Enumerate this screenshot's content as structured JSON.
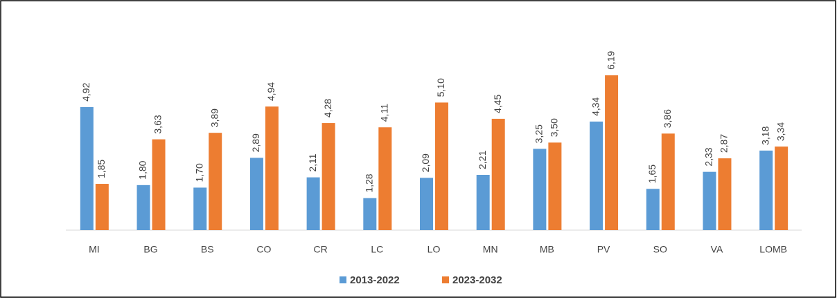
{
  "chart_data": {
    "type": "bar",
    "categories": [
      "MI",
      "BG",
      "BS",
      "CO",
      "CR",
      "LC",
      "LO",
      "MN",
      "MB",
      "PV",
      "SO",
      "VA",
      "LOMB"
    ],
    "series": [
      {
        "name": "2013-2022",
        "color": "#5b9bd5",
        "values": [
          4.92,
          1.8,
          1.7,
          2.89,
          2.11,
          1.28,
          2.09,
          2.21,
          3.25,
          4.34,
          1.65,
          2.33,
          3.18
        ],
        "value_labels": [
          "4,92",
          "1,80",
          "1,70",
          "2,89",
          "2,11",
          "1,28",
          "2,09",
          "2,21",
          "3,25",
          "4,34",
          "1,65",
          "2,33",
          "3,18"
        ]
      },
      {
        "name": "2023-2032",
        "color": "#ed7d31",
        "values": [
          1.85,
          3.63,
          3.89,
          4.94,
          4.28,
          4.11,
          5.1,
          4.45,
          3.5,
          6.19,
          3.86,
          2.87,
          3.34
        ],
        "value_labels": [
          "1,85",
          "3,63",
          "3,89",
          "4,94",
          "4,28",
          "4,11",
          "5,10",
          "4,45",
          "3,50",
          "6,19",
          "3,86",
          "2,87",
          "3,34"
        ]
      }
    ],
    "legend": "bottom"
  }
}
